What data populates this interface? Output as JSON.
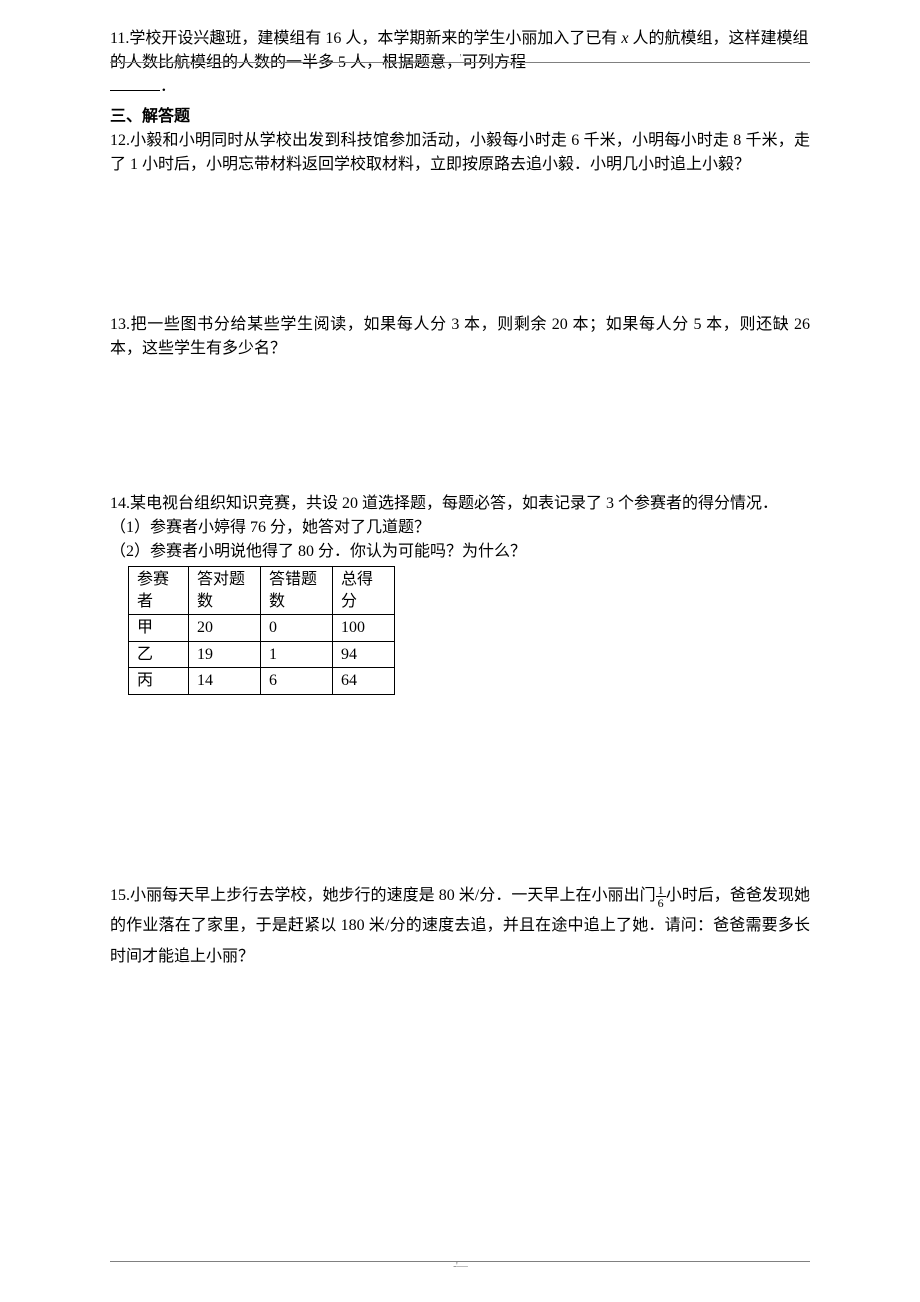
{
  "header_mark": "_'_",
  "footer_mark": "-'—",
  "problems": {
    "p11": "11.学校开设兴趣班，建模组有 16 人，本学期新来的学生小丽加入了已有 x 人的航模组，这样建模组的人数比航模组的人数的一半多 5 人，根据题意，可列方程",
    "p11_blank_suffix": "．",
    "section3": "三、解答题",
    "p12": "12.小毅和小明同时从学校出发到科技馆参加活动，小毅每小时走 6 千米，小明每小时走 8 千米，走了 1 小时后，小明忘带材料返回学校取材料，立即按原路去追小毅．小明几小时追上小毅？",
    "p13": "13.把一些图书分给某些学生阅读，如果每人分 3 本，则剩余 20 本；如果每人分 5 本，则还缺 26 本，这些学生有多少名？",
    "p14_intro": "14.某电视台组织知识竞赛，共设 20 道选择题，每题必答，如表记录了 3 个参赛者的得分情况．",
    "p14_sub1": "（1）参赛者小婷得 76 分，她答对了几道题？",
    "p14_sub2": "（2）参赛者小明说他得了 80 分．你认为可能吗？为什么？",
    "p15_part1": "15.小丽每天早上步行去学校，她步行的速度是 80 米/分．一天早上在小丽出门",
    "p15_frac_num": "1",
    "p15_frac_den": "6",
    "p15_part2": "小时后，爸爸发现她的作业落在了家里，于是赶紧以 180 米/分的速度去追，并且在途中追上了她．请问：爸爸需要多长时间才能追上小丽？"
  },
  "table": {
    "headers": [
      "参赛者",
      "答对题数",
      "答错题数",
      "总得分"
    ],
    "rows": [
      [
        "甲",
        "20",
        "0",
        "100"
      ],
      [
        "乙",
        "19",
        "1",
        "94"
      ],
      [
        "丙",
        "14",
        "6",
        "64"
      ]
    ]
  }
}
